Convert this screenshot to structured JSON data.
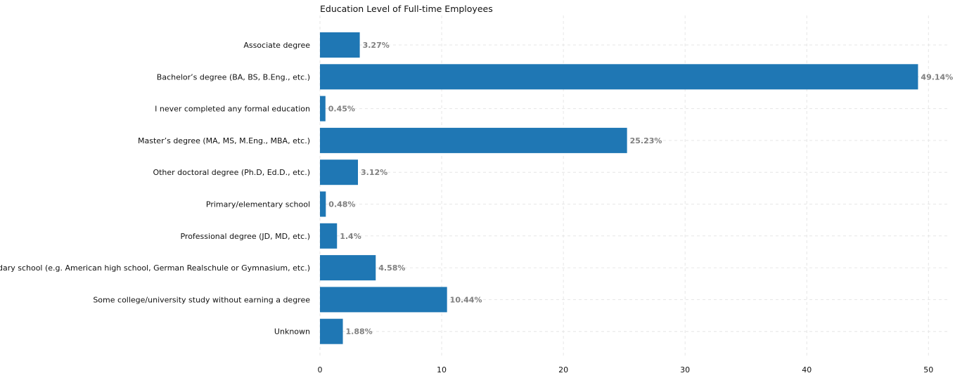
{
  "chart_data": {
    "type": "bar",
    "orientation": "horizontal",
    "title": "Education Level of Full-time Employees",
    "xlabel": "",
    "ylabel": "",
    "categories": [
      "Associate degree",
      "Bachelor’s degree (BA, BS, B.Eng., etc.)",
      "I never completed any formal education",
      "Master’s degree (MA, MS, M.Eng., MBA, etc.)",
      "Other doctoral degree (Ph.D, Ed.D., etc.)",
      "Primary/elementary school",
      "Professional degree (JD, MD, etc.)",
      "Secondary school (e.g. American high school, German Realschule or Gymnasium, etc.)",
      "Some college/university study without earning a degree",
      "Unknown"
    ],
    "values": [
      3.27,
      49.14,
      0.45,
      25.23,
      3.12,
      0.48,
      1.4,
      4.58,
      10.44,
      1.88
    ],
    "value_labels": [
      "3.27%",
      "49.14%",
      "0.45%",
      "25.23%",
      "3.12%",
      "0.48%",
      "1.4%",
      "4.58%",
      "10.44%",
      "1.88%"
    ],
    "xlim": [
      0,
      51.6
    ],
    "xticks": [
      0,
      10,
      20,
      30,
      40,
      50
    ],
    "grid": true,
    "bar_color": "#1f77b4",
    "label_color": "#808080"
  }
}
